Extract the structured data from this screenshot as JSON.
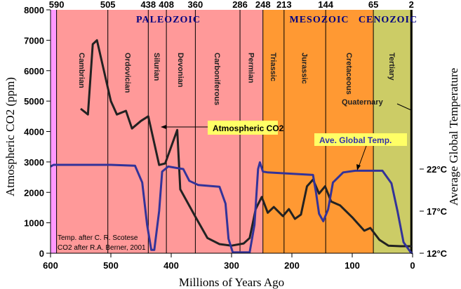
{
  "chart_data": {
    "type": "line",
    "xlabel": "Millions of Years Ago",
    "ylabel": "Atmospheric CO2 (ppm)",
    "y2label": "Average Global Temperature",
    "xlim": [
      600,
      0
    ],
    "ylim": [
      0,
      8000
    ],
    "y2lim": [
      12,
      22
    ],
    "x_ticks": [
      600,
      500,
      400,
      300,
      200,
      100,
      0
    ],
    "y_ticks": [
      0,
      1000,
      2000,
      3000,
      4000,
      5000,
      6000,
      7000,
      8000
    ],
    "y2_ticks": [
      {
        "value": 12,
        "label": "12°C"
      },
      {
        "value": 17,
        "label": "17°C"
      },
      {
        "value": 22,
        "label": "22°C"
      }
    ],
    "boundaries": [
      590,
      505,
      438,
      408,
      360,
      286,
      248,
      213,
      144,
      65,
      2
    ],
    "eras": [
      {
        "name": "",
        "from": 600,
        "to": 590,
        "color": "#FF99FF"
      },
      {
        "name": "PALEOZOIC",
        "from": 590,
        "to": 248,
        "color": "#FF9999"
      },
      {
        "name": "MESOZOIC",
        "from": 248,
        "to": 65,
        "color": "#FF9933"
      },
      {
        "name": "CENOZOIC",
        "from": 65,
        "to": 0,
        "color": "#CCCC66"
      }
    ],
    "periods": [
      {
        "name": "Cambrian",
        "from": 590,
        "to": 505
      },
      {
        "name": "Ordovician",
        "from": 505,
        "to": 438
      },
      {
        "name": "Silurian",
        "from": 438,
        "to": 408
      },
      {
        "name": "Devonian",
        "from": 408,
        "to": 360
      },
      {
        "name": "Carboniferous",
        "from": 360,
        "to": 286
      },
      {
        "name": "Permian",
        "from": 286,
        "to": 248
      },
      {
        "name": "Triassic",
        "from": 248,
        "to": 213
      },
      {
        "name": "Jurassic",
        "from": 213,
        "to": 144
      },
      {
        "name": "Cretaceous",
        "from": 144,
        "to": 65
      },
      {
        "name": "Tertiary",
        "from": 65,
        "to": 2
      }
    ],
    "quaternary_label": "Quaternary",
    "series": [
      {
        "name": "Atmospheric CO2",
        "axis": "left",
        "color": "#222222",
        "x": [
          550,
          538,
          530,
          523,
          500,
          490,
          475,
          465,
          450,
          438,
          420,
          410,
          390,
          385,
          360,
          340,
          320,
          300,
          280,
          270,
          260,
          250,
          240,
          230,
          215,
          205,
          195,
          185,
          175,
          165,
          155,
          145,
          135,
          120,
          100,
          80,
          70,
          55,
          40,
          20,
          0
        ],
        "y": [
          4750,
          4560,
          6870,
          7000,
          5000,
          4560,
          4680,
          4100,
          4350,
          4500,
          2900,
          2950,
          4050,
          2100,
          1200,
          500,
          300,
          250,
          320,
          500,
          1450,
          1850,
          1330,
          1520,
          1220,
          1450,
          1130,
          1270,
          2200,
          2420,
          1960,
          2200,
          1700,
          1570,
          1180,
          740,
          830,
          440,
          250,
          230,
          230
        ]
      },
      {
        "name": "Ave. Global Temp.",
        "axis": "right",
        "color": "#333399",
        "x": [
          600,
          595,
          500,
          460,
          448,
          440,
          433,
          428,
          420,
          415,
          405,
          380,
          370,
          355,
          320,
          310,
          305,
          298,
          270,
          262,
          256,
          253,
          248,
          240,
          165,
          160,
          155,
          148,
          140,
          132,
          115,
          95,
          50,
          35,
          25,
          15,
          3,
          0
        ],
        "y": [
          22.3,
          22.5,
          22.5,
          22.4,
          20.4,
          15.4,
          12.4,
          12.4,
          17.0,
          21.7,
          22.3,
          22.0,
          20.6,
          20.1,
          19.9,
          17.9,
          13.7,
          12.1,
          12.1,
          15.4,
          22.0,
          22.8,
          21.7,
          21.6,
          21.3,
          19.2,
          16.7,
          15.8,
          17.2,
          20.4,
          21.6,
          21.8,
          21.8,
          20.3,
          17.0,
          13.3,
          12.1,
          12.0
        ]
      }
    ],
    "annotations": [
      "Atmospheric CO2",
      "Ave. Global Temp."
    ],
    "credits": [
      "Temp. after C. R. Scotese",
      "CO2 after R.A. Berner, 2001"
    ],
    "callout_color": "#FFFF66"
  }
}
